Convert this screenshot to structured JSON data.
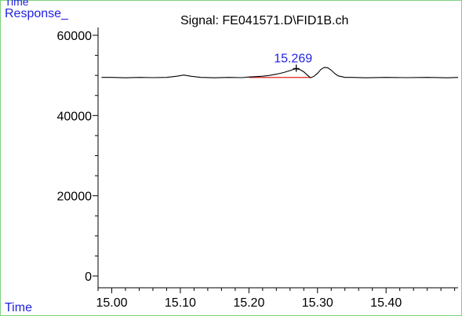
{
  "header": {
    "corner_label": "Time",
    "y_corner_label": "Response_",
    "signal_title": "Signal: FE041571.D\\FID1B.ch"
  },
  "footer": {
    "x_corner_label": "Time"
  },
  "colors": {
    "frame_border": "#7fd27f",
    "axis_label": "#1f1fe0",
    "annotation": "#1f1fe0",
    "trace": "#000000",
    "baseline_marker": "#e01f1f",
    "tick": "#000000"
  },
  "chart_data": {
    "type": "line",
    "title": "Signal: FE041571.D\\FID1B.ch",
    "xlabel": "Time",
    "ylabel": "Response_",
    "xlim": [
      14.98,
      15.505
    ],
    "ylim": [
      0,
      62000
    ],
    "x_ticks": [
      15.0,
      15.1,
      15.2,
      15.3,
      15.4
    ],
    "x_tick_labels": [
      "15.00",
      "15.10",
      "15.20",
      "15.30",
      "15.40"
    ],
    "x_minor_step": 0.02,
    "y_ticks": [
      0,
      20000,
      40000,
      60000
    ],
    "y_tick_labels": [
      "0",
      "20000",
      "40000",
      "60000"
    ],
    "y_minor_step": 5000,
    "grid": false,
    "series": [
      {
        "x": [
          14.985,
          15.0,
          15.02,
          15.04,
          15.06,
          15.08,
          15.095,
          15.105,
          15.115,
          15.13,
          15.15,
          15.17,
          15.19,
          15.2,
          15.21,
          15.22,
          15.23,
          15.24,
          15.25,
          15.26,
          15.265,
          15.269,
          15.275,
          15.28,
          15.285,
          15.29,
          15.295,
          15.3,
          15.305,
          15.31,
          15.315,
          15.32,
          15.325,
          15.33,
          15.34,
          15.35,
          15.37,
          15.4,
          15.43,
          15.46,
          15.49,
          15.505
        ],
        "y": [
          49500,
          49500,
          49400,
          49500,
          49450,
          49500,
          49800,
          50100,
          49800,
          49500,
          49400,
          49500,
          49450,
          49600,
          49700,
          49800,
          50000,
          50300,
          50700,
          51200,
          51500,
          51700,
          51400,
          50900,
          50100,
          49400,
          49800,
          50500,
          51500,
          52000,
          51900,
          51300,
          50500,
          49900,
          49500,
          49500,
          49400,
          49500,
          49450,
          49500,
          49400,
          49500
        ]
      }
    ],
    "baseline": {
      "x": [
        15.2,
        15.289
      ],
      "y": [
        49500,
        49500
      ]
    },
    "peaks": [
      {
        "x": 15.269,
        "y": 51700,
        "label": "15.269"
      }
    ]
  }
}
